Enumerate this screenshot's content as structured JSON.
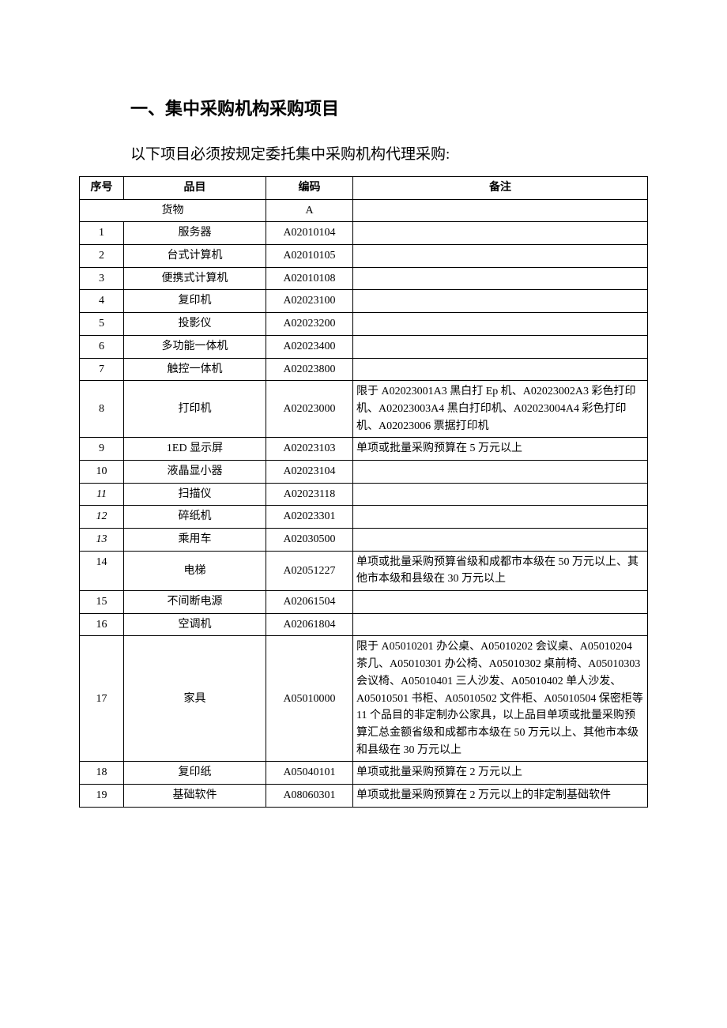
{
  "heading": "一、集中采购机构采购项目",
  "subheading": "以下项目必须按规定委托集中采购机构代理采购:",
  "table": {
    "columns": [
      "序号",
      "品目",
      "编码",
      "备注"
    ],
    "category_row": {
      "item": "货物",
      "code": "A"
    },
    "rows": [
      {
        "seq": "1",
        "item": "服务器",
        "code": "A02010104",
        "note": "",
        "italic": false,
        "vtop": false
      },
      {
        "seq": "2",
        "item": "台式计算机",
        "code": "A02010105",
        "note": "",
        "italic": false,
        "vtop": false
      },
      {
        "seq": "3",
        "item": "便携式计算机",
        "code": "A02010108",
        "note": "",
        "italic": false,
        "vtop": false
      },
      {
        "seq": "4",
        "item": "复印机",
        "code": "A02023100",
        "note": "",
        "italic": false,
        "vtop": false
      },
      {
        "seq": "5",
        "item": "投影仪",
        "code": "A02023200",
        "note": "",
        "italic": false,
        "vtop": false
      },
      {
        "seq": "6",
        "item": "多功能一体机",
        "code": "A02023400",
        "note": "",
        "italic": false,
        "vtop": false
      },
      {
        "seq": "7",
        "item": "触控一体机",
        "code": "A02023800",
        "note": "",
        "italic": false,
        "vtop": false
      },
      {
        "seq": "8",
        "item": "打印机",
        "code": "A02023000",
        "note": "限于 A02023001A3 黑白打 Ep 机、A02023002A3 彩色打印机、A02023003A4 黑白打印机、A02023004A4 彩色打印机、A02023006 票据打印机",
        "italic": false,
        "vtop": false
      },
      {
        "seq": "9",
        "item": "1ED 显示屏",
        "code": "A02023103",
        "note": "单项或批量采购预算在 5 万元以上",
        "italic": false,
        "vtop": false
      },
      {
        "seq": "10",
        "item": "液晶显小器",
        "code": "A02023104",
        "note": "",
        "italic": false,
        "vtop": false
      },
      {
        "seq": "11",
        "item": "扫描仪",
        "code": "A02023118",
        "note": "",
        "italic": true,
        "vtop": false
      },
      {
        "seq": "12",
        "item": "碎纸机",
        "code": "A02023301",
        "note": "",
        "italic": true,
        "vtop": false
      },
      {
        "seq": "13",
        "item": "乘用车",
        "code": "A02030500",
        "note": "",
        "italic": true,
        "vtop": false
      },
      {
        "seq": "14",
        "item": "电梯",
        "code": "A02051227",
        "note": "单项或批量采购预算省级和成都市本级在 50 万元以上、其他市本级和县级在 30 万元以上",
        "italic": false,
        "vtop": true
      },
      {
        "seq": "15",
        "item": "不间断电源",
        "code": "A02061504",
        "note": "",
        "italic": false,
        "vtop": false
      },
      {
        "seq": "16",
        "item": "空调机",
        "code": "A02061804",
        "note": "",
        "italic": false,
        "vtop": false
      },
      {
        "seq": "17",
        "item": "家具",
        "code": "A05010000",
        "note": "限于 A05010201 办公桌、A05010202 会议桌、A05010204 茶几、A05010301 办公椅、A05010302 桌前椅、A05010303 会议椅、A05010401 三人沙发、A05010402 单人沙发、A05010501 书柜、A05010502 文件柜、A05010504 保密柜等 11 个品目的非定制办公家具，以上品目单项或批量采购预算汇总金额省级和成都市本级在 50 万元以上、其他市本级和县级在 30 万元以上",
        "italic": false,
        "vtop": false
      },
      {
        "seq": "18",
        "item": "复印纸",
        "code": "A05040101",
        "note": "单项或批量采购预算在 2 万元以上",
        "italic": false,
        "vtop": false
      },
      {
        "seq": "19",
        "item": "基础软件",
        "code": "A08060301",
        "note": "单项或批量采购预算在 2 万元以上的非定制基础软件",
        "italic": false,
        "vtop": false
      }
    ]
  }
}
